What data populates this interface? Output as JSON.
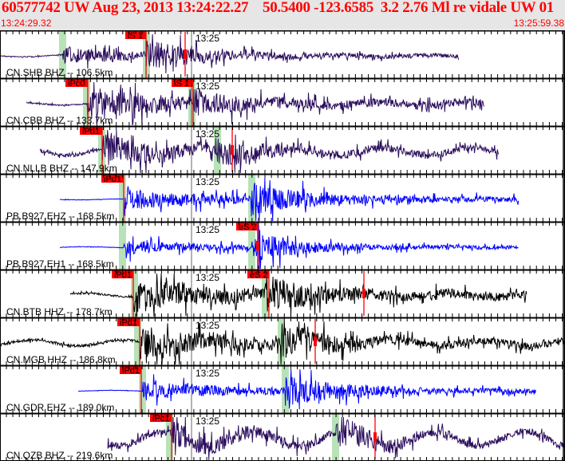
{
  "header": {
    "title": "60577742 UW Aug 23, 2013 13:24:22.27    50.5400 -123.6585  3.2 2.76 Ml re vidale UW 01    4",
    "start_time": "13:24:29.32",
    "end_time": "13:25:59.38"
  },
  "colors": {
    "header_text": "#ff0000",
    "pick": "#ff0000",
    "predicted": "#b8e2b8",
    "bh": "#2a0d5c",
    "eh": "#0000ff",
    "hh": "#000000"
  },
  "time_mark": "13:25",
  "traces": [
    {
      "label": "CN.SHB BHZ -- 106.5km",
      "color": "#2a0d5c",
      "picks": [
        {
          "label": "iS 1"
        }
      ]
    },
    {
      "label": "CN.CBB BHZ -- 133.7km",
      "color": "#2a0d5c",
      "picks": [
        {
          "label": "iPc0"
        },
        {
          "label": "iS 1"
        }
      ]
    },
    {
      "label": "CN.NLLB BHZ -- 147.9km",
      "color": "#2a0d5c",
      "picks": [
        {
          "label": "iPd1"
        }
      ]
    },
    {
      "label": "PB.B927.EHZ -- 168.5km",
      "color": "#0000ff",
      "picks": [
        {
          "label": "iPd1"
        }
      ]
    },
    {
      "label": "PB.B927.EH1 -- 168.5km",
      "color": "#0000ff",
      "picks": [
        {
          "label": "eS 2"
        }
      ]
    },
    {
      "label": "CN.BTB HHZ -- 178.7km",
      "color": "#000000",
      "picks": [
        {
          "label": "iPd1"
        },
        {
          "label": "eS 2"
        }
      ]
    },
    {
      "label": "CN.MGB HHZ -- 186.8km",
      "color": "#000000",
      "picks": [
        {
          "label": "iPd1"
        }
      ]
    },
    {
      "label": "CN.GDR EHZ -- 189.0km",
      "color": "#0000ff",
      "picks": [
        {
          "label": "iPd1"
        }
      ]
    },
    {
      "label": "CN.QZB BHZ -- 219.6km",
      "color": "#2a0d5c",
      "picks": [
        {
          "label": "iPc1"
        }
      ]
    }
  ]
}
